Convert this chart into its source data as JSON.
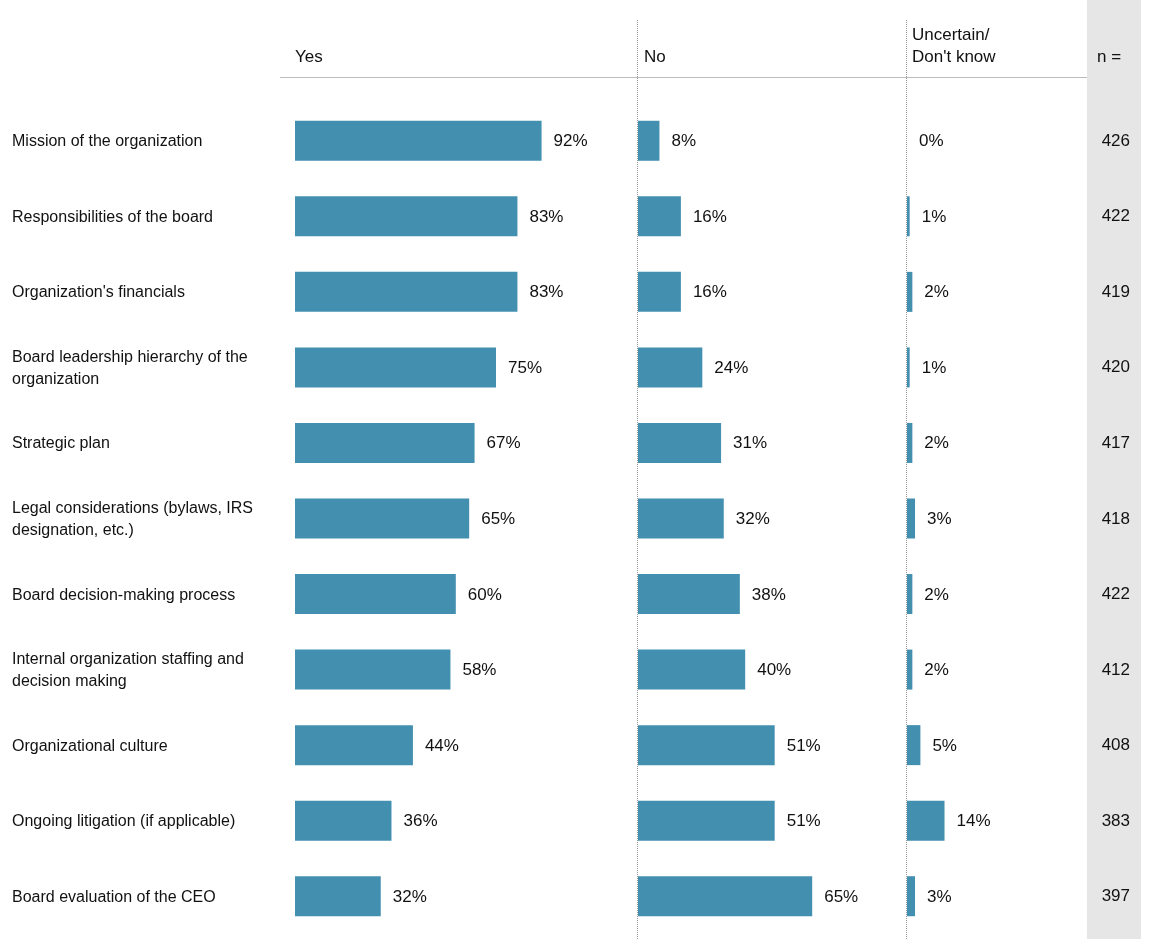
{
  "chart_data": [
    {
      "type": "bar",
      "orientation": "horizontal",
      "title": "Yes",
      "tick_labels": "y",
      "color": "#428fb0",
      "categories": [
        "Mission of the organization",
        "Responsibilities of the board",
        "Organization's financials",
        "Board leadership hierarchy of the organization",
        "Strategic plan",
        "Legal considerations (bylaws, IRS designation, etc.)",
        "Board decision-making process",
        "Internal organization staffing and decision making",
        "Organizational culture",
        "Ongoing litigation (if applicable)",
        "Board evaluation of the CEO"
      ],
      "values": [
        92,
        83,
        83,
        75,
        67,
        65,
        60,
        58,
        44,
        36,
        32
      ],
      "value_labels": [
        "92%",
        "83%",
        "83%",
        "75%",
        "67%",
        "65%",
        "60%",
        "58%",
        "44%",
        "36%",
        "32%"
      ]
    },
    {
      "type": "bar",
      "orientation": "horizontal",
      "title": "No",
      "tick_labels": false,
      "color": "#428fb0",
      "values": [
        8,
        16,
        16,
        24,
        31,
        32,
        38,
        40,
        51,
        51,
        65
      ],
      "value_labels": [
        "8%",
        "16%",
        "16%",
        "24%",
        "31%",
        "32%",
        "38%",
        "40%",
        "51%",
        "51%",
        "65%"
      ]
    },
    {
      "type": "bar",
      "orientation": "horizontal",
      "title": "Uncertain/ Don't know",
      "tick_labels": false,
      "color": "#428fb0",
      "values": [
        0,
        1,
        2,
        1,
        2,
        3,
        2,
        2,
        5,
        14,
        3
      ],
      "value_labels": [
        "0%",
        "1%",
        "2%",
        "1%",
        "2%",
        "3%",
        "2%",
        "2%",
        "5%",
        "14%",
        "3%"
      ]
    },
    {
      "type": "other",
      "title": "n =",
      "data_labels": true,
      "values": [
        426,
        422,
        419,
        420,
        417,
        418,
        422,
        412,
        408,
        383,
        397
      ]
    }
  ]
}
